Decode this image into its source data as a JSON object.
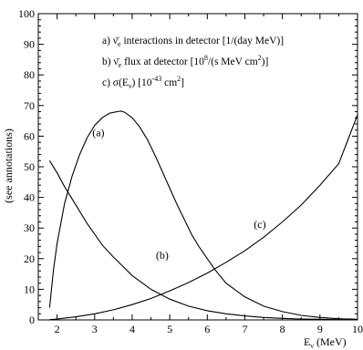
{
  "chart_data": {
    "type": "line",
    "xlabel": "E",
    "xlabel_sub": "ν",
    "xlabel_unit": " (MeV)",
    "ylabel": "(see annotations)",
    "xlim": [
      1.5,
      10
    ],
    "ylim": [
      0,
      100
    ],
    "x_ticks": [
      2,
      3,
      4,
      5,
      6,
      7,
      8,
      9,
      10
    ],
    "y_ticks": [
      0,
      10,
      20,
      30,
      40,
      50,
      60,
      70,
      80,
      90,
      100
    ],
    "legend": {
      "placement": "top-right",
      "entries": [
        {
          "prefix": "a) ",
          "nu": "ν̄",
          "sub": "e",
          "text": " interactions in detector [1/(day MeV)]"
        },
        {
          "prefix": "b) ",
          "nu": "ν̄",
          "sub": "e",
          "text": " flux at detector [10",
          "sup": "8",
          "text2": "/(s MeV cm",
          "sup2": "2",
          "text3": ")]"
        },
        {
          "prefix": "c) σ(E",
          "sub": "ν",
          "text": ") [10",
          "sup": "-43",
          "text2": " cm",
          "sup2": "2",
          "text3": "]"
        }
      ]
    },
    "series": [
      {
        "label": "(a)",
        "label_at": [
          3.1,
          60
        ],
        "x": [
          1.8,
          1.9,
          2.0,
          2.2,
          2.4,
          2.6,
          2.8,
          3.0,
          3.2,
          3.4,
          3.6,
          3.7,
          3.8,
          4.0,
          4.2,
          4.4,
          4.6,
          4.8,
          5.0,
          5.2,
          5.4,
          5.6,
          5.8,
          6.0,
          6.2,
          6.5,
          7.0,
          7.5,
          8.0,
          8.5,
          9.0,
          9.5,
          10.0
        ],
        "y": [
          4,
          16,
          25,
          38,
          47,
          54,
          59.5,
          63.5,
          66,
          67.5,
          68,
          68.2,
          67.8,
          66,
          63,
          59,
          54,
          48.5,
          43,
          37.5,
          32.5,
          27.5,
          23.5,
          20,
          16.5,
          12,
          7.5,
          4.5,
          2.7,
          1.5,
          0.8,
          0.4,
          0.2
        ]
      },
      {
        "label": "(b)",
        "label_at": [
          4.8,
          20
        ],
        "x": [
          1.8,
          2.0,
          2.2,
          2.4,
          2.6,
          2.8,
          3.0,
          3.2,
          3.5,
          4.0,
          4.5,
          5.0,
          5.5,
          6.0,
          6.5,
          7.0,
          7.5,
          8.0,
          8.5,
          9.0,
          9.5,
          10.0
        ],
        "y": [
          52,
          48,
          43.5,
          39.5,
          35.5,
          31.5,
          28,
          24.5,
          20.5,
          14.5,
          10,
          6.8,
          4.5,
          3,
          2,
          1.3,
          0.8,
          0.5,
          0.3,
          0.2,
          0.1,
          0.05
        ]
      },
      {
        "label": "(c)",
        "label_at": [
          7.4,
          30
        ],
        "x": [
          1.8,
          2.0,
          2.5,
          3.0,
          3.5,
          4.0,
          4.5,
          5.0,
          5.5,
          6.0,
          6.5,
          7.0,
          7.5,
          8.0,
          8.5,
          9.0,
          9.5,
          10.0
        ],
        "y": [
          0.1,
          0.3,
          1,
          2,
          3.3,
          5,
          7,
          9.5,
          12.2,
          15.3,
          18.8,
          22.6,
          27,
          32,
          37.5,
          44,
          51,
          67
        ]
      }
    ]
  }
}
